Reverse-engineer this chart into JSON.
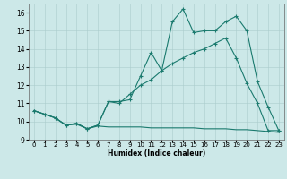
{
  "xlabel": "Humidex (Indice chaleur)",
  "xlim": [
    -0.5,
    23.5
  ],
  "ylim": [
    9,
    16.5
  ],
  "yticks": [
    9,
    10,
    11,
    12,
    13,
    14,
    15,
    16
  ],
  "xticks": [
    0,
    1,
    2,
    3,
    4,
    5,
    6,
    7,
    8,
    9,
    10,
    11,
    12,
    13,
    14,
    15,
    16,
    17,
    18,
    19,
    20,
    21,
    22,
    23
  ],
  "bg_color": "#cce8e8",
  "line_color": "#1a7a6e",
  "grid_color": "#aacccc",
  "line1_x": [
    0,
    1,
    2,
    3,
    4,
    5,
    6,
    7,
    8,
    9,
    10,
    11,
    12,
    13,
    14,
    15,
    16,
    17,
    18,
    19,
    20,
    21,
    22,
    23
  ],
  "line1_y": [
    10.6,
    10.4,
    10.2,
    9.8,
    9.9,
    9.6,
    9.8,
    11.1,
    11.1,
    11.2,
    12.5,
    13.8,
    12.8,
    15.5,
    16.2,
    14.9,
    15.0,
    15.0,
    15.5,
    15.8,
    15.0,
    12.2,
    10.8,
    9.5
  ],
  "line2_x": [
    0,
    1,
    2,
    3,
    4,
    5,
    6,
    7,
    8,
    9,
    10,
    11,
    12,
    13,
    14,
    15,
    16,
    17,
    18,
    19,
    20,
    21,
    22,
    23
  ],
  "line2_y": [
    10.6,
    10.4,
    10.2,
    9.8,
    9.9,
    9.6,
    9.8,
    11.1,
    11.0,
    11.5,
    12.0,
    12.3,
    12.8,
    13.2,
    13.5,
    13.8,
    14.0,
    14.3,
    14.6,
    13.5,
    12.1,
    11.0,
    9.5,
    9.5
  ],
  "line3_x": [
    0,
    1,
    2,
    3,
    4,
    5,
    6,
    7,
    8,
    9,
    10,
    11,
    12,
    13,
    14,
    15,
    16,
    17,
    18,
    19,
    20,
    21,
    22,
    23
  ],
  "line3_y": [
    10.6,
    10.4,
    10.2,
    9.8,
    9.85,
    9.6,
    9.75,
    9.7,
    9.7,
    9.7,
    9.7,
    9.65,
    9.65,
    9.65,
    9.65,
    9.65,
    9.6,
    9.6,
    9.6,
    9.55,
    9.55,
    9.5,
    9.45,
    9.4
  ],
  "xlabel_fontsize": 5.5,
  "tick_fontsize": 5,
  "ytick_fontsize": 5.5
}
